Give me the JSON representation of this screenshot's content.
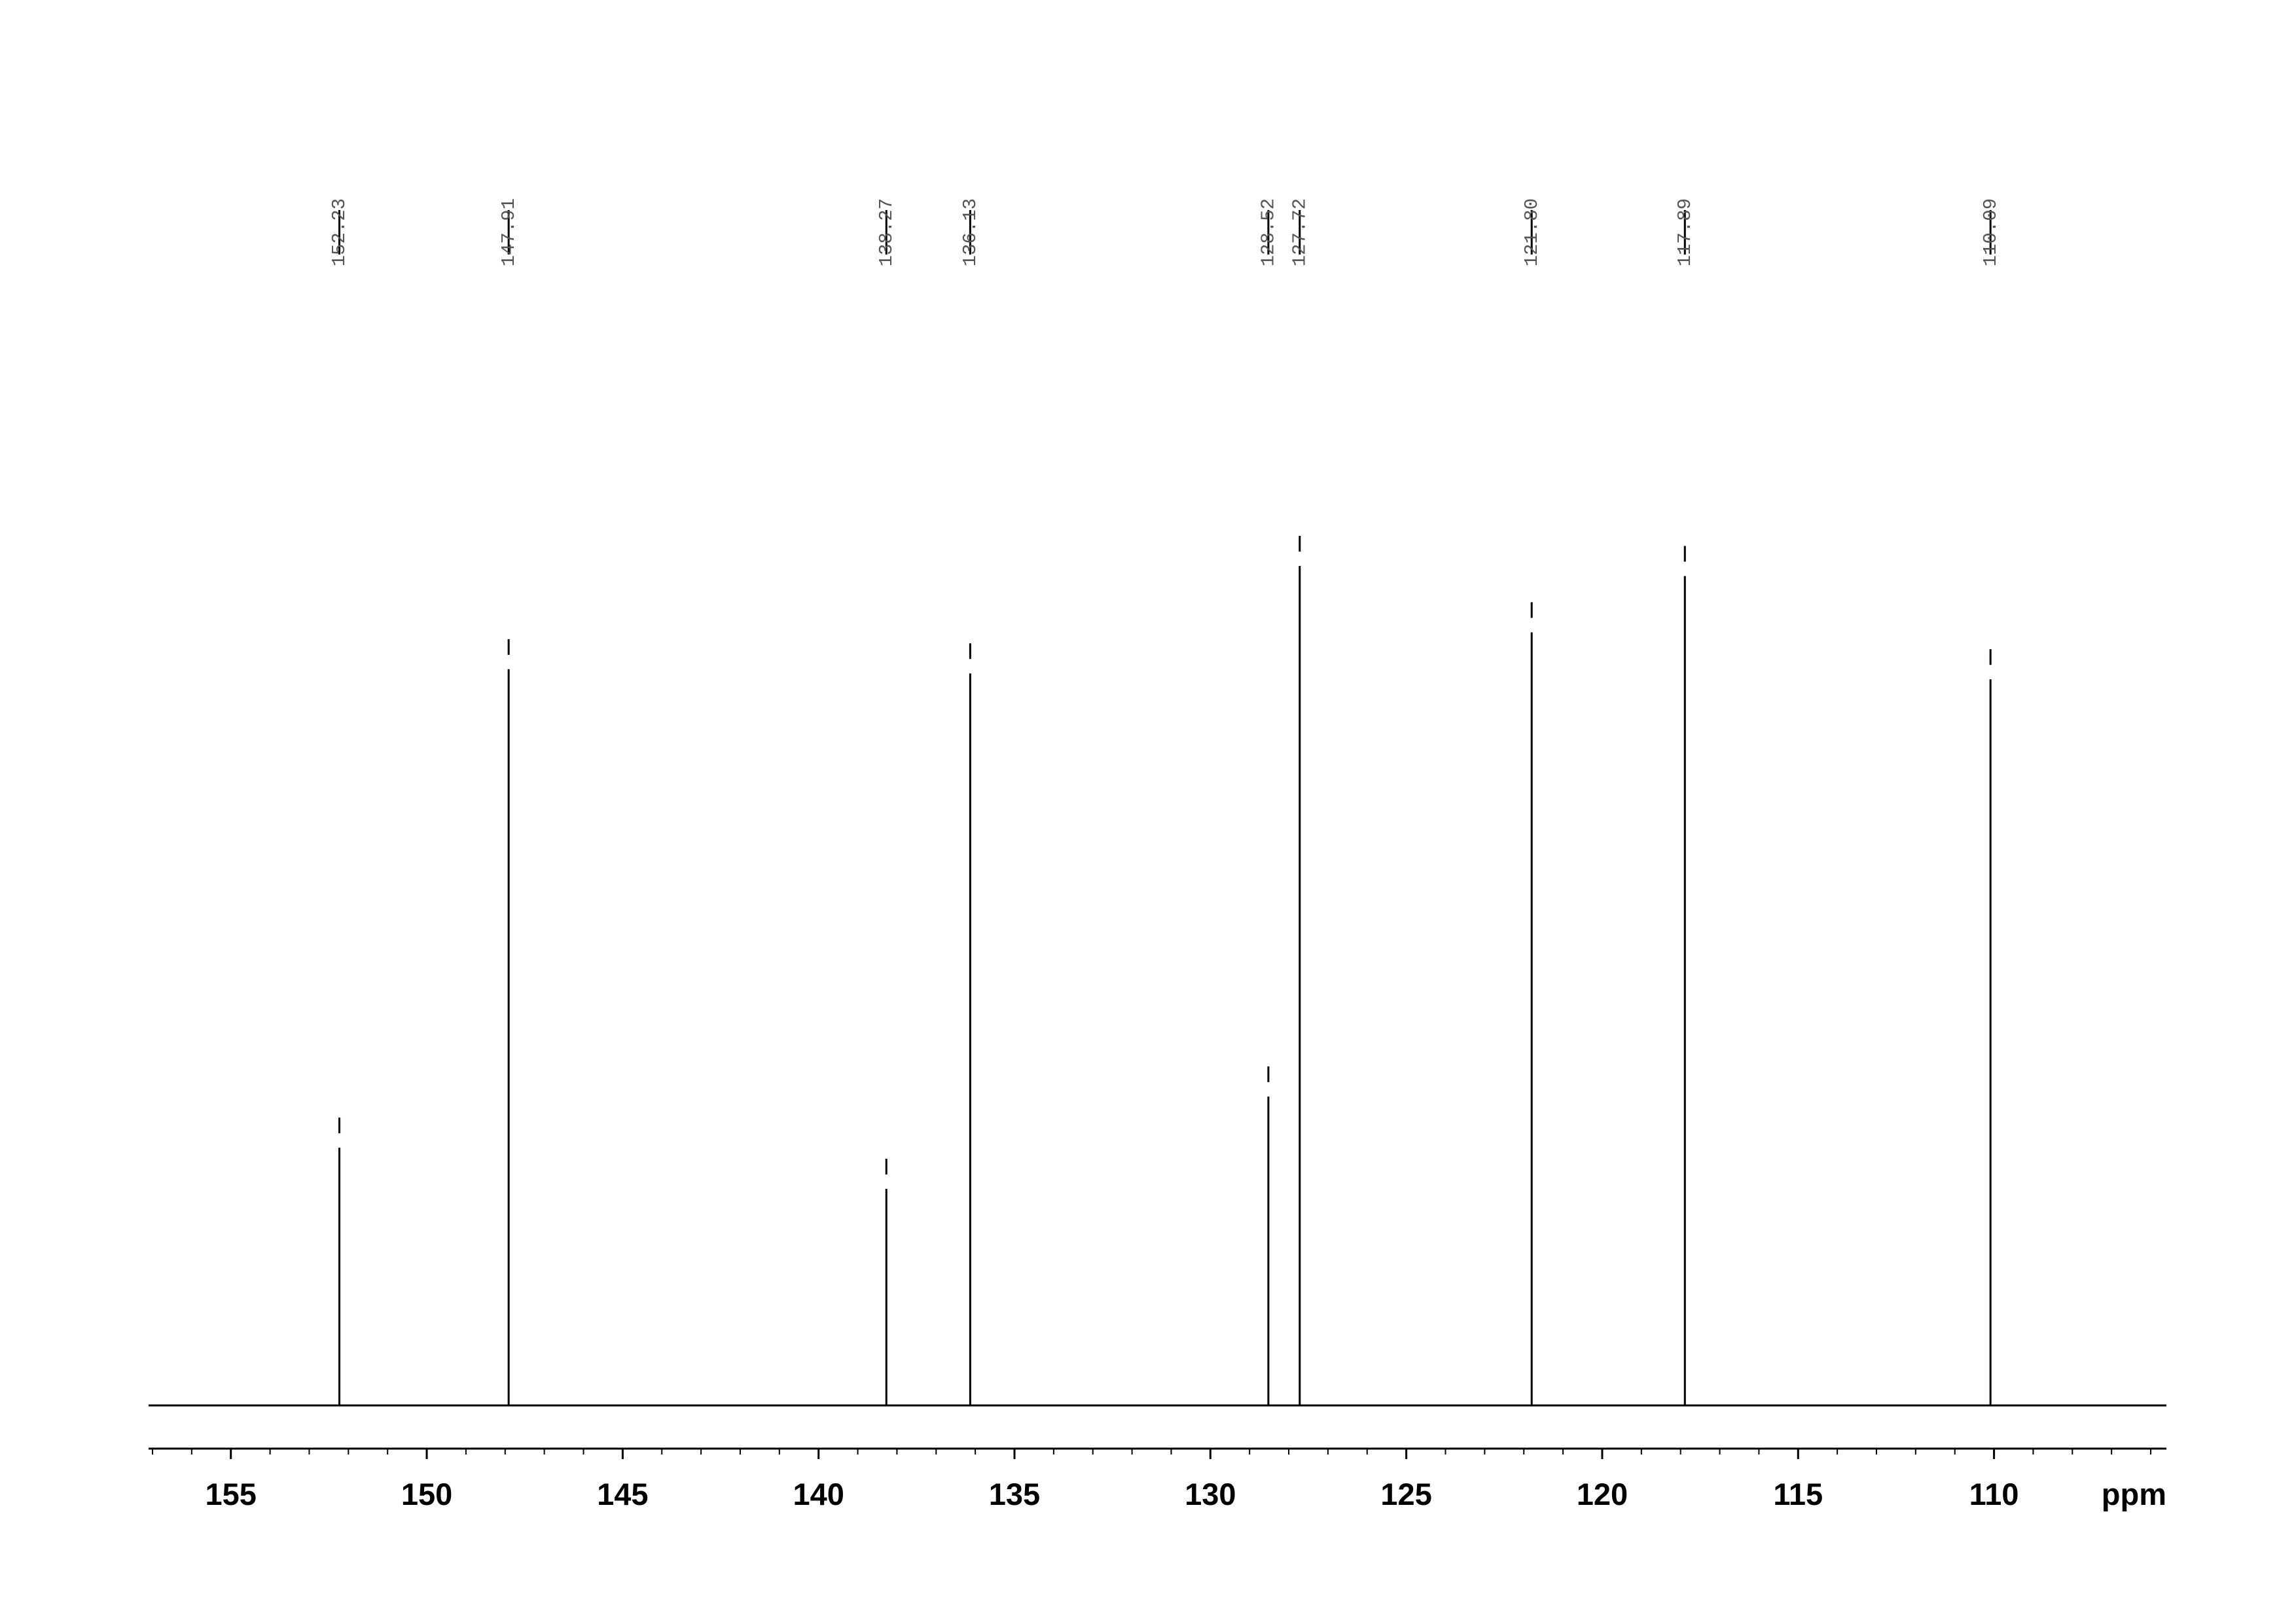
{
  "chart_data": {
    "type": "spectrum",
    "x": [
      152.23,
      147.91,
      138.27,
      136.13,
      128.52,
      127.72,
      121.8,
      117.89,
      110.09
    ],
    "peak_labels": [
      "152.23",
      "147.91",
      "138.27",
      "136.13",
      "128.52",
      "127.72",
      "121.80",
      "117.89",
      "110.09"
    ],
    "values": [
      30.7,
      87.7,
      25.8,
      87.2,
      36.8,
      100,
      92.1,
      98.8,
      86.5
    ],
    "color": "#000000",
    "xlabel": "ppm",
    "xlim": [
      157.1,
      105.6
    ],
    "ylim": [
      0,
      100
    ],
    "xticks": [
      155,
      150,
      145,
      140,
      135,
      130,
      125,
      120,
      115,
      110
    ],
    "xminorticks": [
      157,
      156,
      154,
      153,
      152,
      151,
      149,
      148,
      147,
      146,
      144,
      143,
      142,
      141,
      139,
      138,
      137,
      136,
      134,
      133,
      132,
      131,
      129,
      128,
      127,
      126,
      124,
      123,
      122,
      121,
      119,
      118,
      117,
      116,
      114,
      113,
      112,
      111,
      109,
      108,
      107,
      106
    ]
  }
}
